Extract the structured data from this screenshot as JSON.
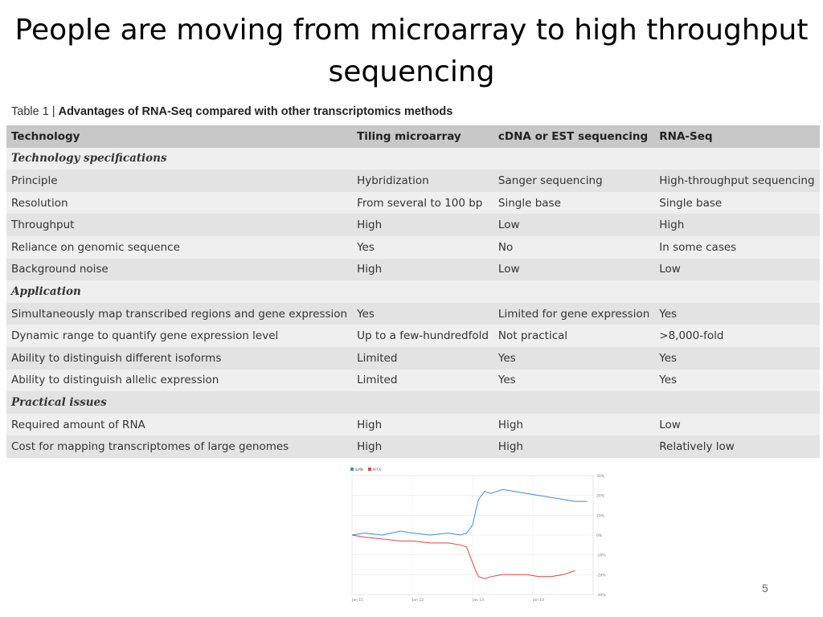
{
  "slide": {
    "title": "People are moving from microarray to high throughput sequencing",
    "page_number": "5"
  },
  "table": {
    "caption_prefix": "Table 1 | ",
    "caption_title": "Advantages of RNA-Seq compared with other transcriptomics methods",
    "headers": [
      "Technology",
      "Tiling microarray",
      "cDNA or EST sequencing",
      "RNA-Seq"
    ],
    "rows": [
      {
        "type": "section",
        "label": "Technology specifications"
      },
      {
        "type": "row",
        "cells": [
          "Principle",
          "Hybridization",
          "Sanger sequencing",
          "High-throughput sequencing"
        ]
      },
      {
        "type": "row",
        "cells": [
          "Resolution",
          "From several to 100 bp",
          "Single base",
          "Single base"
        ]
      },
      {
        "type": "row",
        "cells": [
          "Throughput",
          "High",
          "Low",
          "High"
        ]
      },
      {
        "type": "row",
        "cells": [
          "Reliance on genomic sequence",
          "Yes",
          "No",
          "In some cases"
        ]
      },
      {
        "type": "row",
        "cells": [
          "Background noise",
          "High",
          "Low",
          "Low"
        ]
      },
      {
        "type": "section",
        "label": "Application"
      },
      {
        "type": "row",
        "cells": [
          "Simultaneously map transcribed regions and gene expression",
          "Yes",
          "Limited for gene expression",
          "Yes"
        ]
      },
      {
        "type": "row",
        "cells": [
          "Dynamic range to quantify gene expression level",
          "Up to a few-hundredfold",
          "Not practical",
          ">8,000-fold"
        ]
      },
      {
        "type": "row",
        "cells": [
          "Ability to distinguish different isoforms",
          "Limited",
          "Yes",
          "Yes"
        ]
      },
      {
        "type": "row",
        "cells": [
          "Ability to distinguish allelic expression",
          "Limited",
          "Yes",
          "Yes"
        ]
      },
      {
        "type": "section",
        "label": "Practical issues"
      },
      {
        "type": "row",
        "cells": [
          "Required amount of RNA",
          "High",
          "High",
          "Low"
        ]
      },
      {
        "type": "row",
        "cells": [
          "Cost for mapping transcriptomes of large genomes",
          "High",
          "High",
          "Relatively low"
        ]
      }
    ]
  },
  "chart_data": {
    "type": "line",
    "legend": "top-left",
    "grid": true,
    "x_ticks": [
      "Jan 11",
      "Jan 12",
      "Jan 13",
      "Jan 14"
    ],
    "y_ticks": [
      "30%",
      "20%",
      "10%",
      "0%",
      "-10%",
      "-20%",
      "-30%"
    ],
    "ylim": [
      -30,
      30
    ],
    "series": [
      {
        "name": "ILMN",
        "color": "#3b8fd4",
        "x": [
          0,
          0.2,
          0.5,
          0.8,
          1.0,
          1.3,
          1.6,
          1.8,
          1.9,
          2.0,
          2.05,
          2.1,
          2.2,
          2.3,
          2.5,
          2.7,
          2.9,
          3.1,
          3.3,
          3.5,
          3.7,
          3.9
        ],
        "values": [
          0,
          1,
          0,
          2,
          1,
          0,
          1,
          0,
          1,
          5,
          12,
          18,
          22,
          21,
          23,
          22,
          21,
          20,
          19,
          18,
          17,
          17
        ]
      },
      {
        "name": "AFFX",
        "color": "#e04545",
        "x": [
          0,
          0.2,
          0.5,
          0.8,
          1.0,
          1.3,
          1.6,
          1.8,
          1.9,
          2.0,
          2.05,
          2.1,
          2.2,
          2.3,
          2.5,
          2.7,
          2.9,
          3.1,
          3.3,
          3.5,
          3.7
        ],
        "values": [
          0,
          -1,
          -2,
          -3,
          -3,
          -4,
          -4,
          -5,
          -6,
          -14,
          -18,
          -21,
          -22,
          -21,
          -20,
          -20,
          -20,
          -21,
          -21,
          -20,
          -18
        ]
      }
    ]
  },
  "colors": {
    "header_bg": "#c8c8c8",
    "row_odd_bg": "#efefef",
    "row_even_bg": "#e3e3e3"
  }
}
